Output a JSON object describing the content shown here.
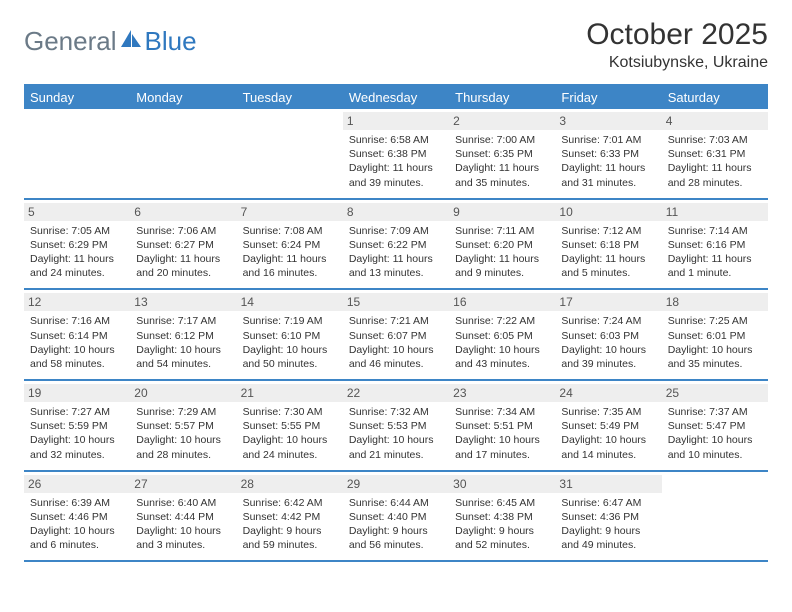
{
  "brand": {
    "text1": "General",
    "text2": "Blue",
    "color_gray": "#6b7a87",
    "color_blue": "#2f78bf",
    "icon_color": "#2f78bf"
  },
  "header": {
    "title": "October 2025",
    "location": "Kotsiubynske, Ukraine"
  },
  "colors": {
    "header_bg": "#3d85c6",
    "row_border": "#3d85c6",
    "daynum_bg": "#eeeeee",
    "text": "#333333"
  },
  "day_names": [
    "Sunday",
    "Monday",
    "Tuesday",
    "Wednesday",
    "Thursday",
    "Friday",
    "Saturday"
  ],
  "weeks": [
    [
      {
        "empty": true
      },
      {
        "empty": true
      },
      {
        "empty": true
      },
      {
        "num": "1",
        "sunrise": "Sunrise: 6:58 AM",
        "sunset": "Sunset: 6:38 PM",
        "daylight1": "Daylight: 11 hours",
        "daylight2": "and 39 minutes."
      },
      {
        "num": "2",
        "sunrise": "Sunrise: 7:00 AM",
        "sunset": "Sunset: 6:35 PM",
        "daylight1": "Daylight: 11 hours",
        "daylight2": "and 35 minutes."
      },
      {
        "num": "3",
        "sunrise": "Sunrise: 7:01 AM",
        "sunset": "Sunset: 6:33 PM",
        "daylight1": "Daylight: 11 hours",
        "daylight2": "and 31 minutes."
      },
      {
        "num": "4",
        "sunrise": "Sunrise: 7:03 AM",
        "sunset": "Sunset: 6:31 PM",
        "daylight1": "Daylight: 11 hours",
        "daylight2": "and 28 minutes."
      }
    ],
    [
      {
        "num": "5",
        "sunrise": "Sunrise: 7:05 AM",
        "sunset": "Sunset: 6:29 PM",
        "daylight1": "Daylight: 11 hours",
        "daylight2": "and 24 minutes."
      },
      {
        "num": "6",
        "sunrise": "Sunrise: 7:06 AM",
        "sunset": "Sunset: 6:27 PM",
        "daylight1": "Daylight: 11 hours",
        "daylight2": "and 20 minutes."
      },
      {
        "num": "7",
        "sunrise": "Sunrise: 7:08 AM",
        "sunset": "Sunset: 6:24 PM",
        "daylight1": "Daylight: 11 hours",
        "daylight2": "and 16 minutes."
      },
      {
        "num": "8",
        "sunrise": "Sunrise: 7:09 AM",
        "sunset": "Sunset: 6:22 PM",
        "daylight1": "Daylight: 11 hours",
        "daylight2": "and 13 minutes."
      },
      {
        "num": "9",
        "sunrise": "Sunrise: 7:11 AM",
        "sunset": "Sunset: 6:20 PM",
        "daylight1": "Daylight: 11 hours",
        "daylight2": "and 9 minutes."
      },
      {
        "num": "10",
        "sunrise": "Sunrise: 7:12 AM",
        "sunset": "Sunset: 6:18 PM",
        "daylight1": "Daylight: 11 hours",
        "daylight2": "and 5 minutes."
      },
      {
        "num": "11",
        "sunrise": "Sunrise: 7:14 AM",
        "sunset": "Sunset: 6:16 PM",
        "daylight1": "Daylight: 11 hours",
        "daylight2": "and 1 minute."
      }
    ],
    [
      {
        "num": "12",
        "sunrise": "Sunrise: 7:16 AM",
        "sunset": "Sunset: 6:14 PM",
        "daylight1": "Daylight: 10 hours",
        "daylight2": "and 58 minutes."
      },
      {
        "num": "13",
        "sunrise": "Sunrise: 7:17 AM",
        "sunset": "Sunset: 6:12 PM",
        "daylight1": "Daylight: 10 hours",
        "daylight2": "and 54 minutes."
      },
      {
        "num": "14",
        "sunrise": "Sunrise: 7:19 AM",
        "sunset": "Sunset: 6:10 PM",
        "daylight1": "Daylight: 10 hours",
        "daylight2": "and 50 minutes."
      },
      {
        "num": "15",
        "sunrise": "Sunrise: 7:21 AM",
        "sunset": "Sunset: 6:07 PM",
        "daylight1": "Daylight: 10 hours",
        "daylight2": "and 46 minutes."
      },
      {
        "num": "16",
        "sunrise": "Sunrise: 7:22 AM",
        "sunset": "Sunset: 6:05 PM",
        "daylight1": "Daylight: 10 hours",
        "daylight2": "and 43 minutes."
      },
      {
        "num": "17",
        "sunrise": "Sunrise: 7:24 AM",
        "sunset": "Sunset: 6:03 PM",
        "daylight1": "Daylight: 10 hours",
        "daylight2": "and 39 minutes."
      },
      {
        "num": "18",
        "sunrise": "Sunrise: 7:25 AM",
        "sunset": "Sunset: 6:01 PM",
        "daylight1": "Daylight: 10 hours",
        "daylight2": "and 35 minutes."
      }
    ],
    [
      {
        "num": "19",
        "sunrise": "Sunrise: 7:27 AM",
        "sunset": "Sunset: 5:59 PM",
        "daylight1": "Daylight: 10 hours",
        "daylight2": "and 32 minutes."
      },
      {
        "num": "20",
        "sunrise": "Sunrise: 7:29 AM",
        "sunset": "Sunset: 5:57 PM",
        "daylight1": "Daylight: 10 hours",
        "daylight2": "and 28 minutes."
      },
      {
        "num": "21",
        "sunrise": "Sunrise: 7:30 AM",
        "sunset": "Sunset: 5:55 PM",
        "daylight1": "Daylight: 10 hours",
        "daylight2": "and 24 minutes."
      },
      {
        "num": "22",
        "sunrise": "Sunrise: 7:32 AM",
        "sunset": "Sunset: 5:53 PM",
        "daylight1": "Daylight: 10 hours",
        "daylight2": "and 21 minutes."
      },
      {
        "num": "23",
        "sunrise": "Sunrise: 7:34 AM",
        "sunset": "Sunset: 5:51 PM",
        "daylight1": "Daylight: 10 hours",
        "daylight2": "and 17 minutes."
      },
      {
        "num": "24",
        "sunrise": "Sunrise: 7:35 AM",
        "sunset": "Sunset: 5:49 PM",
        "daylight1": "Daylight: 10 hours",
        "daylight2": "and 14 minutes."
      },
      {
        "num": "25",
        "sunrise": "Sunrise: 7:37 AM",
        "sunset": "Sunset: 5:47 PM",
        "daylight1": "Daylight: 10 hours",
        "daylight2": "and 10 minutes."
      }
    ],
    [
      {
        "num": "26",
        "sunrise": "Sunrise: 6:39 AM",
        "sunset": "Sunset: 4:46 PM",
        "daylight1": "Daylight: 10 hours",
        "daylight2": "and 6 minutes."
      },
      {
        "num": "27",
        "sunrise": "Sunrise: 6:40 AM",
        "sunset": "Sunset: 4:44 PM",
        "daylight1": "Daylight: 10 hours",
        "daylight2": "and 3 minutes."
      },
      {
        "num": "28",
        "sunrise": "Sunrise: 6:42 AM",
        "sunset": "Sunset: 4:42 PM",
        "daylight1": "Daylight: 9 hours",
        "daylight2": "and 59 minutes."
      },
      {
        "num": "29",
        "sunrise": "Sunrise: 6:44 AM",
        "sunset": "Sunset: 4:40 PM",
        "daylight1": "Daylight: 9 hours",
        "daylight2": "and 56 minutes."
      },
      {
        "num": "30",
        "sunrise": "Sunrise: 6:45 AM",
        "sunset": "Sunset: 4:38 PM",
        "daylight1": "Daylight: 9 hours",
        "daylight2": "and 52 minutes."
      },
      {
        "num": "31",
        "sunrise": "Sunrise: 6:47 AM",
        "sunset": "Sunset: 4:36 PM",
        "daylight1": "Daylight: 9 hours",
        "daylight2": "and 49 minutes."
      },
      {
        "empty": true
      }
    ]
  ]
}
